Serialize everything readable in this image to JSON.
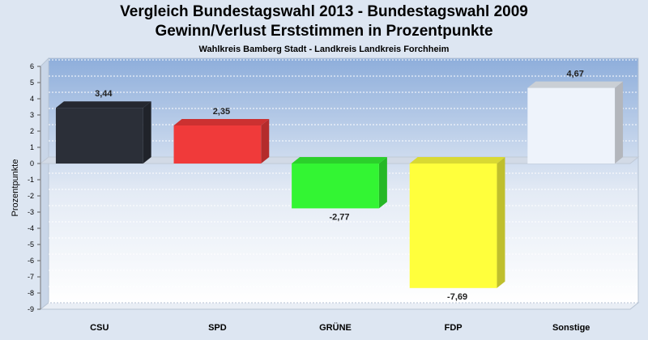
{
  "chart_data": {
    "type": "bar",
    "title": "Vergleich Bundestagswahl 2013 - Bundestagswahl 2009",
    "subtitle": "Gewinn/Verlust Erststimmen in Prozentpunkte",
    "subsubtitle": "Wahlkreis Bamberg Stadt - Landkreis Landkreis Forchheim",
    "ylabel": "Prozentpunkte",
    "ylim": [
      -9,
      6
    ],
    "yticks": [
      6,
      5,
      4,
      3,
      2,
      1,
      0,
      -1,
      -2,
      -3,
      -4,
      -5,
      -6,
      -7,
      -8,
      -9
    ],
    "ytick_labels": [
      "6",
      "5",
      "4",
      "3",
      "2",
      "1",
      "0",
      "-1",
      "-2",
      "-3",
      "-4",
      "-5",
      "-6",
      "-7",
      "-8",
      "-9"
    ],
    "categories": [
      "CSU",
      "SPD",
      "GRÜNE",
      "FDP",
      "Sonstige"
    ],
    "values": [
      3.44,
      2.35,
      -2.77,
      -7.69,
      4.67
    ],
    "value_labels": [
      "3,44",
      "2,35",
      "-2,77",
      "-7,69",
      "4,67"
    ],
    "colors": [
      "#2b2f38",
      "#f03a3a",
      "#33f533",
      "#ffff3c",
      "#eef3fb"
    ],
    "grid": true,
    "legend": "none"
  }
}
